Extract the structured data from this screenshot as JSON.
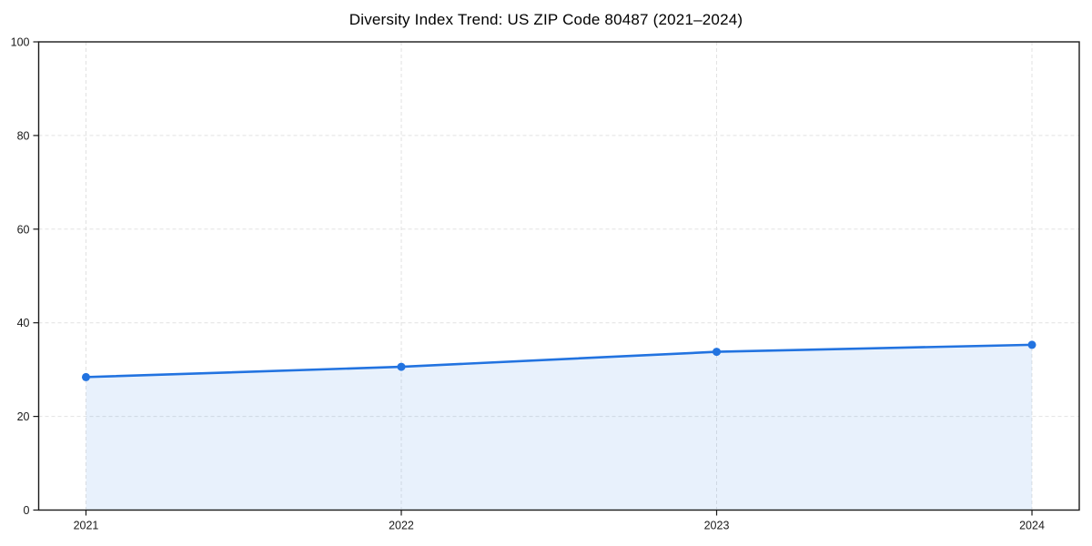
{
  "chart_data": {
    "type": "line",
    "title": "Diversity Index Trend: US ZIP Code 80487 (2021–2024)",
    "x": [
      2021,
      2022,
      2023,
      2024
    ],
    "x_tick_labels": [
      "2021",
      "2022",
      "2023",
      "2024"
    ],
    "values": [
      28.4,
      30.6,
      33.8,
      35.3
    ],
    "xlabel": "",
    "ylabel": "",
    "xlim": [
      2020.85,
      2024.15
    ],
    "ylim": [
      0,
      100
    ],
    "yticks": [
      0,
      20,
      40,
      60,
      80,
      100
    ],
    "grid": true,
    "grid_style": "dashed",
    "legend": "none",
    "area_fill_to_zero": true,
    "colors": {
      "line": "#2273e0",
      "marker": "#2273e0",
      "fill": "#2273e0",
      "fill_opacity": 0.1,
      "grid": "#e2e2e2",
      "axis": "#1a1a1a",
      "tick_label": "#1a1a1a",
      "title": "#000000",
      "background": "#ffffff"
    }
  }
}
